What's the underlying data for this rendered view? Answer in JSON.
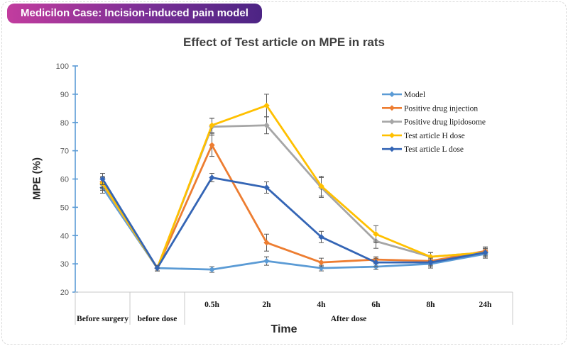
{
  "header": {
    "badge_text": "Medicilon Case: Incision-induced pain model",
    "badge_gradient_start": "#c23c9e",
    "badge_gradient_end": "#4c2484"
  },
  "chart_data": {
    "type": "line",
    "title": "Effect of Test article on MPE in rats",
    "xlabel": "Time",
    "ylabel": "MPE (%)",
    "ylim": [
      20,
      100
    ],
    "ytick_step": 10,
    "grid": false,
    "legend_position": "inside-right",
    "axis_color": "#5b9bd5",
    "error_color": "#595959",
    "categories": [
      "Before surgery",
      "before dose",
      "0.5h",
      "2h",
      "4h",
      "6h",
      "8h",
      "24h"
    ],
    "category_groups": [
      {
        "label": "Before surgery",
        "span": 1,
        "show_sub": false
      },
      {
        "label": "before dose",
        "span": 1,
        "show_sub": false
      },
      {
        "label": "After dose",
        "span": 6,
        "show_sub": true
      }
    ],
    "series": [
      {
        "name": "Model",
        "color": "#5b9bd5",
        "values": [
          57,
          28.5,
          28,
          31,
          28.5,
          29,
          30,
          33.5
        ],
        "errors": [
          2,
          1,
          1,
          1.5,
          1,
          1,
          1.5,
          1.5
        ]
      },
      {
        "name": "Positive drug injection",
        "color": "#ed7d31",
        "values": [
          59,
          28.5,
          72,
          37.5,
          30.5,
          31.5,
          31,
          34.5
        ],
        "errors": [
          2,
          1,
          4,
          3,
          1.5,
          1,
          1.5,
          1.5
        ]
      },
      {
        "name": "Positive drug lipidosome",
        "color": "#a6a6a6",
        "values": [
          58,
          28.5,
          78.5,
          79,
          57,
          38,
          32.5,
          34
        ],
        "errors": [
          2,
          1,
          3,
          3,
          3.5,
          2.5,
          1.5,
          1.5
        ]
      },
      {
        "name": "Test article H dose",
        "color": "#ffc000",
        "values": [
          58.5,
          28.5,
          79,
          86,
          57.5,
          40.5,
          32.5,
          34
        ],
        "errors": [
          2,
          1,
          2.5,
          4,
          3.5,
          3,
          1.5,
          1.5
        ]
      },
      {
        "name": "Test article L dose",
        "color": "#3465b5",
        "values": [
          60,
          28.5,
          60.5,
          57,
          39.5,
          30.5,
          30.5,
          34
        ],
        "errors": [
          2,
          1,
          1.5,
          2,
          2,
          1.5,
          1.5,
          1.5
        ]
      }
    ]
  }
}
